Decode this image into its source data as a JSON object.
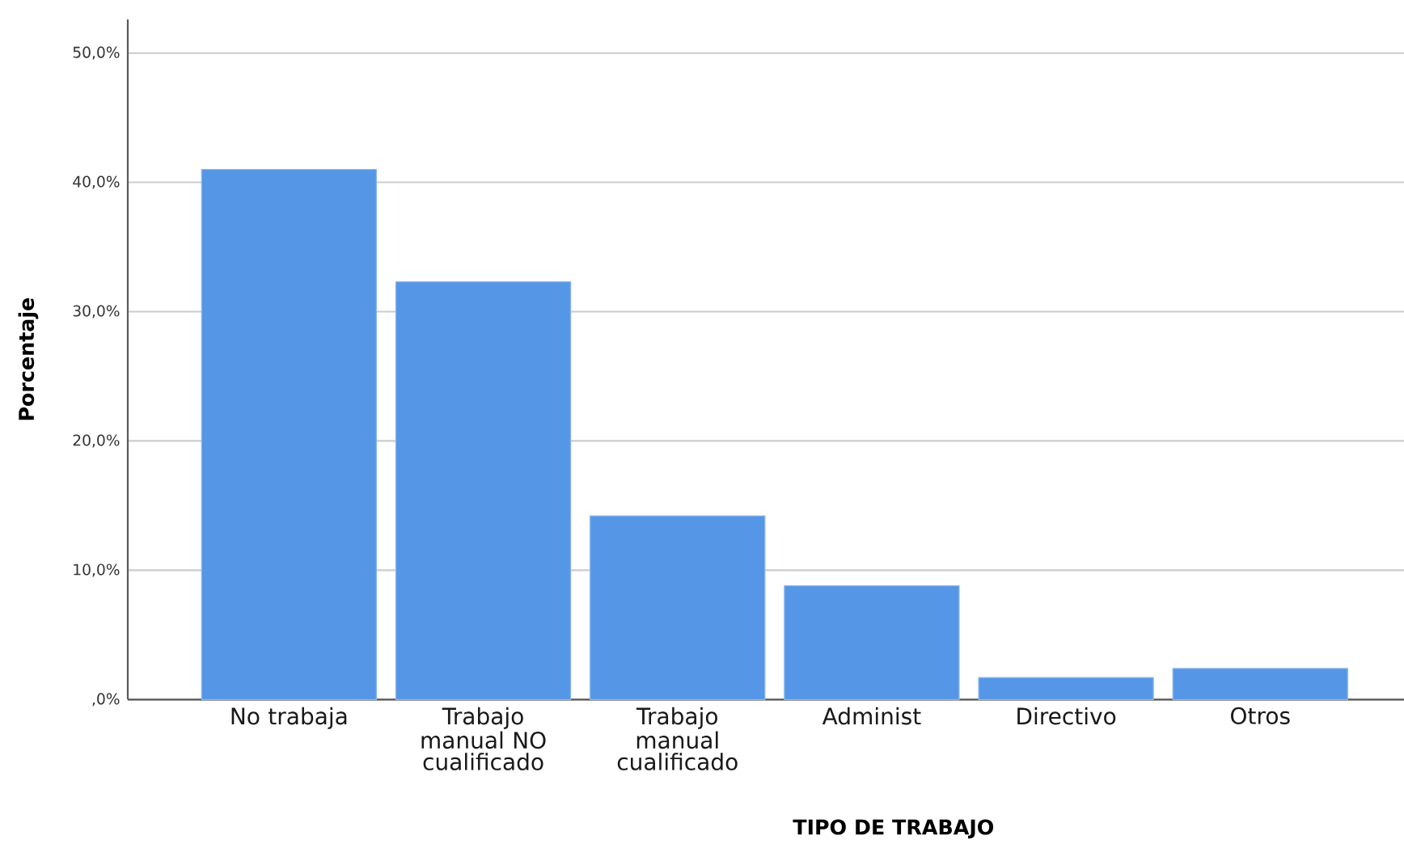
{
  "chart_data": {
    "type": "bar",
    "xlabel": "TIPO DE TRABAJO",
    "ylabel": "Porcentaje",
    "categories": [
      "No trabaja",
      "Trabajo manual NO cualificado",
      "Trabajo manual cualificado",
      "Administ",
      "Directivo",
      "Otros"
    ],
    "values": [
      41.0,
      32.3,
      14.2,
      8.8,
      1.7,
      2.4
    ],
    "color": "#5596e6",
    "ylim": [
      0,
      52.6
    ],
    "yticks": [
      {
        "value": 0,
        "label": ",0%"
      },
      {
        "value": 10,
        "label": "10,0%"
      },
      {
        "value": 20,
        "label": "20,0%"
      },
      {
        "value": 30,
        "label": "30,0%"
      },
      {
        "value": 40,
        "label": "40,0%"
      },
      {
        "value": 50,
        "label": "50,0%"
      }
    ],
    "grid": "y"
  }
}
